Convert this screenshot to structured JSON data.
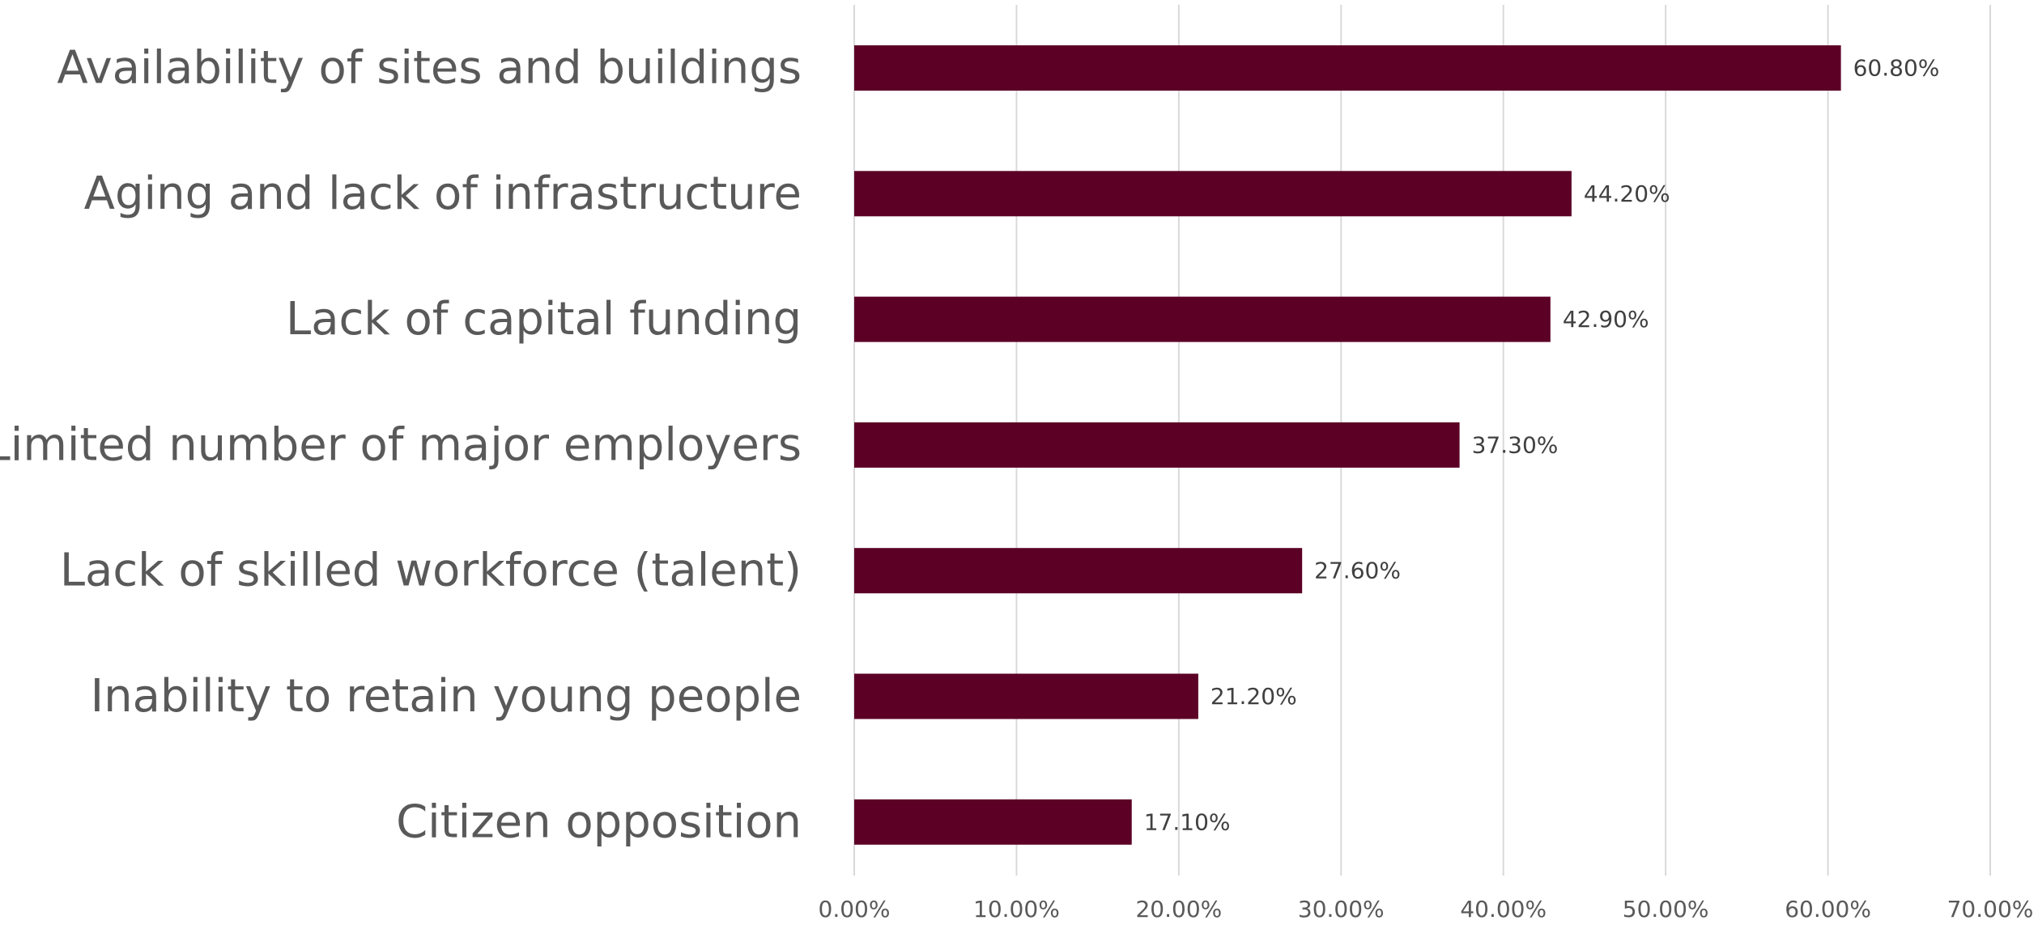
{
  "chart_data": {
    "type": "bar",
    "orientation": "horizontal",
    "title": "",
    "xlabel": "",
    "ylabel": "",
    "categories": [
      "Availability of sites and buildings",
      "Aging and lack of infrastructure",
      "Lack of capital funding",
      "Limited number of major employers",
      "Lack of skilled workforce (talent)",
      "Inability to retain young people",
      "Citizen opposition"
    ],
    "values": [
      60.8,
      44.2,
      42.9,
      37.3,
      27.6,
      21.2,
      17.1
    ],
    "data_labels": [
      "60.80%",
      "44.20%",
      "42.90%",
      "37.30%",
      "27.60%",
      "21.20%",
      "17.10%"
    ],
    "xlim": [
      0,
      70
    ],
    "xticks": [
      0,
      10,
      20,
      30,
      40,
      50,
      60,
      70
    ],
    "xtick_labels": [
      "0.00%",
      "10.00%",
      "20.00%",
      "30.00%",
      "40.00%",
      "50.00%",
      "60.00%",
      "70.00%"
    ],
    "grid": "vertical",
    "legend": "none",
    "colors": {
      "bar": "#5c0026",
      "gridline": "#d9d9d9",
      "category_text": "#595959",
      "label_text": "#404040"
    }
  }
}
